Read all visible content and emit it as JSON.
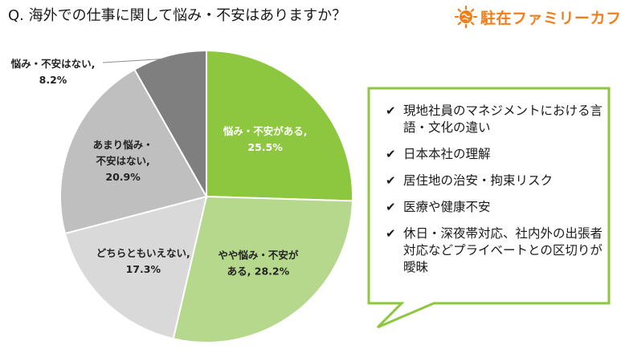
{
  "title": "Q. 海外での仕事に関して悩み・不安はありますか？",
  "logo": {
    "text": "駐在ファミリーカフェ",
    "icon": "sun-globe-logo",
    "color": "#f07f1a"
  },
  "chart_data": {
    "type": "pie",
    "start": "12 o'clock, clockwise",
    "slices": [
      {
        "label_lines": [
          "悩み・不安がある,",
          "25.5%"
        ],
        "value": 25.5,
        "color": "#8dc63f",
        "text_color": "#ffffff"
      },
      {
        "label_lines": [
          "やや悩み・不安が",
          "ある, 28.2%"
        ],
        "value": 28.2,
        "color": "#b5d88c",
        "text_color": "#222222"
      },
      {
        "label_lines": [
          "どちらともいえない,",
          "17.3%"
        ],
        "value": 17.3,
        "color": "#d9d9d9",
        "text_color": "#222222"
      },
      {
        "label_lines": [
          "あまり悩み・",
          "不安はない,",
          "20.9%"
        ],
        "value": 20.9,
        "color": "#bfbfbf",
        "text_color": "#222222"
      },
      {
        "label_lines": [
          "悩み・不安はない,",
          "8.2%"
        ],
        "value": 8.2,
        "color": "#7f7f7f",
        "text_color": "#222222"
      }
    ]
  },
  "callout": {
    "border_color": "#8dc63f",
    "check_icon": "check-mark-icon",
    "check_glyph": "✔",
    "items": [
      "現地社員のマネジメントにおける言語・文化の違い",
      "日本本社の理解",
      "居住地の治安・拘束リスク",
      "医療や健康不安",
      "休日・深夜帯対応、社内外の出張者対応などプライベートとの区切りが曖昧"
    ]
  }
}
